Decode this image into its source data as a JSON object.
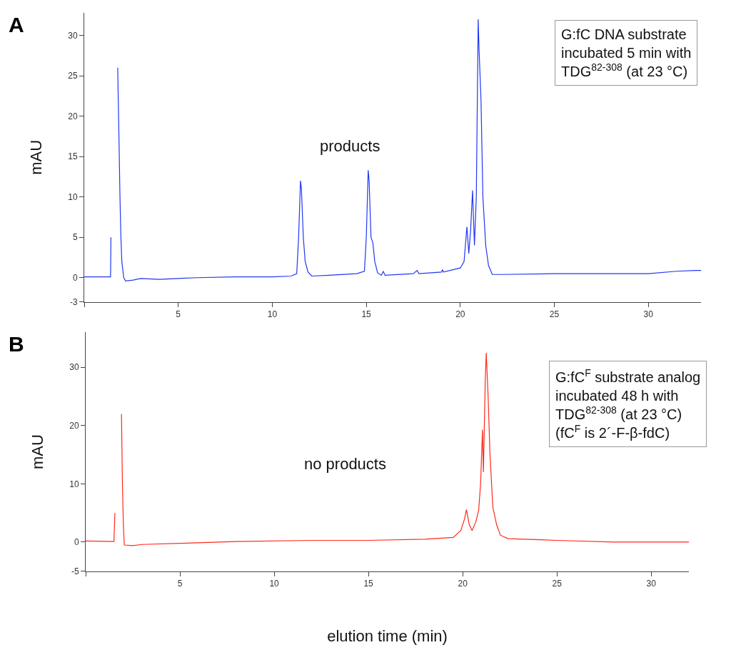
{
  "chart_data": [
    {
      "type": "line",
      "title": "A",
      "ylabel": "mAU",
      "xlim": [
        0,
        32.8
      ],
      "ylim": [
        -3,
        32.8
      ],
      "xticks": [
        {
          "value": 0,
          "label": null
        },
        5,
        10,
        15,
        20,
        25,
        30
      ],
      "yticks": [
        -3,
        0,
        5,
        10,
        15,
        20,
        25,
        30
      ],
      "annotations": [
        "products",
        "G:fC DNA substrate\nincubated 5 min with\nTDG$^{82-308}$ (at 23 °C)"
      ],
      "series": [
        {
          "color": "#2137f2",
          "x": [
            0,
            1.4,
            1.42,
            1.45,
            1.75,
            1.78,
            1.85,
            1.9,
            1.95,
            2.0,
            2.1,
            2.2,
            2.6,
            3,
            4,
            5,
            6,
            8,
            10,
            11,
            11.3,
            11.4,
            11.5,
            11.55,
            11.65,
            11.75,
            11.9,
            12.1,
            13,
            14.5,
            14.9,
            15.0,
            15.1,
            15.15,
            15.25,
            15.35,
            15.45,
            15.6,
            15.8,
            15.9,
            16.0,
            17.5,
            17.7,
            17.8,
            19,
            19.05,
            19.1,
            20,
            20.2,
            20.35,
            20.45,
            20.55,
            20.65,
            20.75,
            20.85,
            20.95,
            21.0,
            21.1,
            21.2,
            21.35,
            21.5,
            21.7,
            22.2,
            25,
            30,
            31.5,
            32.5,
            32.8
          ],
          "values": [
            0.1,
            0.1,
            5,
            null,
            null,
            26,
            17,
            10,
            5,
            2,
            0,
            -0.4,
            -0.3,
            -0.1,
            -0.2,
            -0.1,
            0,
            0.1,
            0.1,
            0.2,
            0.5,
            5,
            12,
            11,
            5,
            2,
            0.7,
            0.2,
            0.3,
            0.5,
            0.8,
            5,
            13.3,
            12,
            5,
            4.3,
            2,
            0.6,
            0.3,
            0.8,
            0.3,
            0.5,
            0.9,
            0.5,
            0.7,
            1,
            0.7,
            1.2,
            2,
            6.3,
            3,
            6,
            10.8,
            4,
            10,
            32,
            28,
            22,
            10,
            4,
            1.5,
            0.4,
            0.4,
            0.5,
            0.5,
            0.8,
            0.9,
            0.9
          ]
        }
      ]
    },
    {
      "type": "line",
      "title": "B",
      "ylabel": "mAU",
      "xlabel": "elution time (min)",
      "xlim": [
        0,
        32
      ],
      "ylim": [
        -5,
        36
      ],
      "xticks": [
        {
          "value": 0,
          "label": null
        },
        5,
        10,
        15,
        20,
        25,
        30
      ],
      "yticks": [
        -5,
        0,
        10,
        20,
        30
      ],
      "annotations": [
        "no products",
        "G:fC$^{F}$ substrate analog\nincubated 48 h with\nTDG$^{82-308}$ (at 23 °C)\n(fC$^{F}$ is 2´-F-β-fdC)"
      ],
      "series": [
        {
          "color": "#ff2a1a",
          "x": [
            0,
            1.5,
            1.55,
            1.6,
            1.85,
            1.9,
            1.95,
            2.0,
            2.05,
            2.5,
            3,
            5,
            8,
            12,
            15,
            18,
            19.5,
            19.9,
            20.1,
            20.2,
            20.35,
            20.5,
            20.7,
            20.85,
            20.95,
            21.05,
            21.1,
            21.2,
            21.25,
            21.35,
            21.45,
            21.6,
            21.8,
            22.0,
            22.4,
            25,
            28,
            32
          ],
          "values": [
            0.2,
            0.1,
            5,
            null,
            null,
            22,
            10,
            3,
            -0.5,
            -0.6,
            -0.4,
            -0.2,
            0.1,
            0.3,
            0.3,
            0.5,
            0.8,
            2,
            4,
            5.6,
            3,
            2,
            3.5,
            5.5,
            10,
            19.3,
            12,
            28,
            32.5,
            25,
            15,
            6,
            3,
            1.2,
            0.6,
            0.3,
            0,
            0
          ]
        }
      ]
    }
  ]
}
